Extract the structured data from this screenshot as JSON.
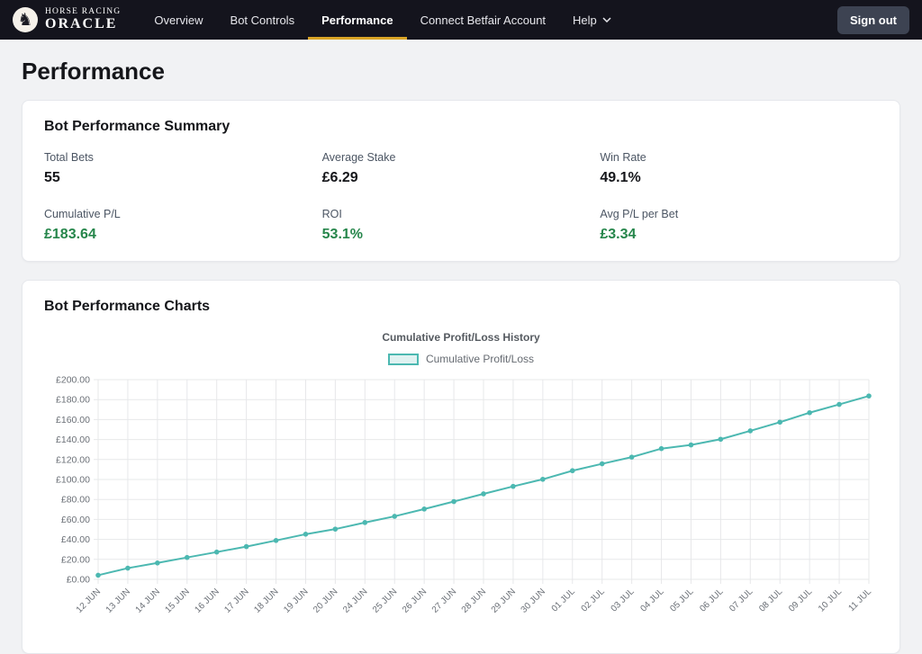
{
  "colors": {
    "navbar_bg": "#14141d",
    "active_tab_gold": "#d9a426",
    "positive_green": "#26864b",
    "chart_teal": "#4cb8b1",
    "signout_bg": "#3d4352"
  },
  "header": {
    "brand": {
      "line1": "HORSE RACING",
      "line2": "ORACLE"
    },
    "nav": [
      {
        "label": "Overview"
      },
      {
        "label": "Bot Controls"
      },
      {
        "label": "Performance"
      },
      {
        "label": "Connect Betfair Account"
      },
      {
        "label": "Help"
      }
    ],
    "active_tab": "Performance",
    "sign_out_label": "Sign out"
  },
  "page": {
    "title": "Performance"
  },
  "summary_card": {
    "title": "Bot Performance Summary",
    "stats": [
      {
        "label": "Total Bets",
        "value": "55",
        "positive": false
      },
      {
        "label": "Average Stake",
        "value": "£6.29",
        "positive": false
      },
      {
        "label": "Win Rate",
        "value": "49.1%",
        "positive": false
      },
      {
        "label": "Cumulative P/L",
        "value": "£183.64",
        "positive": true
      },
      {
        "label": "ROI",
        "value": "53.1%",
        "positive": true
      },
      {
        "label": "Avg P/L per Bet",
        "value": "£3.34",
        "positive": true
      }
    ]
  },
  "charts_card": {
    "title": "Bot Performance Charts"
  },
  "chart_data": {
    "type": "line",
    "title": "Cumulative Profit/Loss History",
    "legend": [
      {
        "label": "Cumulative Profit/Loss"
      }
    ],
    "legend_position": "top",
    "grid": true,
    "categories": [
      "12 JUN",
      "13 JUN",
      "14 JUN",
      "15 JUN",
      "16 JUN",
      "17 JUN",
      "18 JUN",
      "19 JUN",
      "20 JUN",
      "24 JUN",
      "25 JUN",
      "26 JUN",
      "27 JUN",
      "28 JUN",
      "29 JUN",
      "30 JUN",
      "01 JUL",
      "02 JUL",
      "03 JUL",
      "04 JUL",
      "05 JUL",
      "06 JUL",
      "07 JUL",
      "08 JUL",
      "09 JUL",
      "10 JUL",
      "11 JUL"
    ],
    "series": [
      {
        "name": "Cumulative Profit/Loss",
        "values": [
          4.1,
          11.2,
          16.4,
          21.9,
          27.3,
          32.8,
          38.9,
          45.2,
          50.3,
          56.9,
          63.1,
          70.4,
          77.9,
          85.6,
          93.1,
          100.2,
          108.8,
          115.7,
          122.4,
          130.9,
          134.6,
          140.3,
          148.7,
          157.4,
          166.9,
          175.2,
          183.64
        ]
      }
    ],
    "ylim": [
      0,
      200
    ],
    "ytick_step": 20,
    "ytick_prefix": "£",
    "xlabel": "",
    "ylabel": ""
  }
}
